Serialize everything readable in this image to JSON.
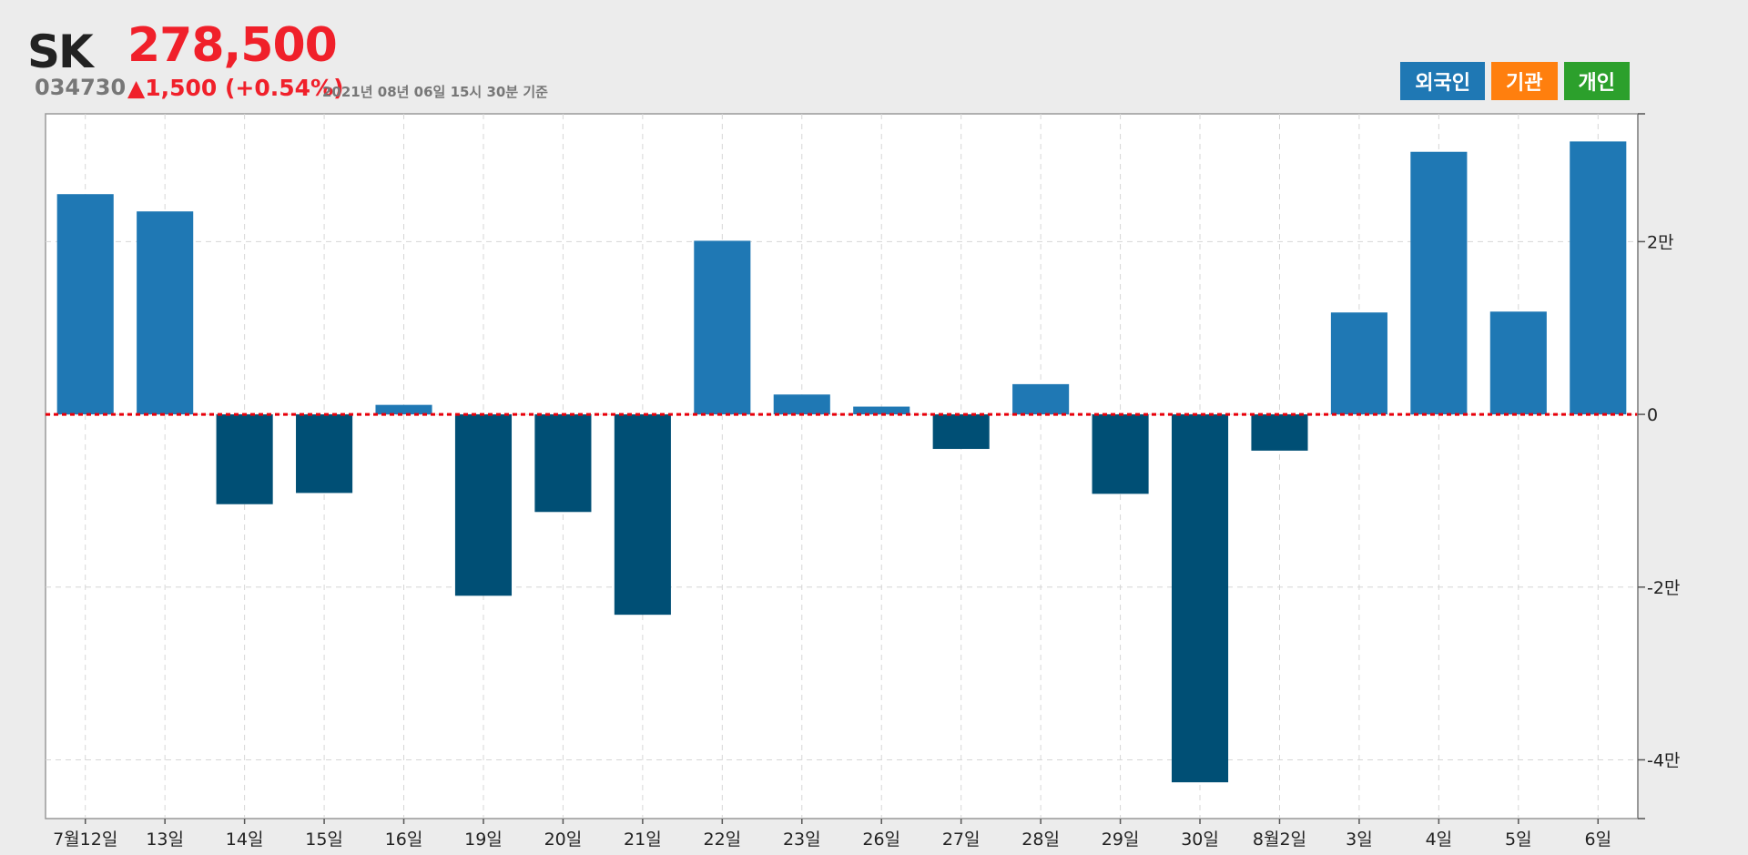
{
  "stock": {
    "name": "SK",
    "price": "278,500",
    "code": "034730",
    "change": "▲1,500 (+0.54%)",
    "asof": "2021년 08년 06일 15시 30분 기준",
    "up_color": "#f0202a"
  },
  "legend": [
    {
      "label": "외국인",
      "color": "#1f78b4"
    },
    {
      "label": "기관",
      "color": "#ff7f0e"
    },
    {
      "label": "개인",
      "color": "#2ca02c"
    }
  ],
  "chart_data": {
    "type": "bar",
    "series_name": "외국인",
    "categories": [
      "7월12일",
      "13일",
      "14일",
      "15일",
      "16일",
      "19일",
      "20일",
      "21일",
      "22일",
      "23일",
      "26일",
      "27일",
      "28일",
      "29일",
      "30일",
      "8월2일",
      "3일",
      "4일",
      "5일",
      "6일"
    ],
    "values": [
      25500,
      23500,
      -10400,
      -9100,
      1100,
      -21000,
      -11300,
      -23200,
      20100,
      2300,
      900,
      -4000,
      3500,
      -9200,
      -42600,
      -4200,
      11800,
      30400,
      11900,
      31600
    ],
    "ylim": [
      -46800,
      34800
    ],
    "yticks": [
      -40000,
      -20000,
      0,
      20000
    ],
    "ytick_labels": [
      "-4만",
      "-2만",
      "0",
      "2만"
    ],
    "positive_color": "#1f78b4",
    "negative_color": "#004f75",
    "zero_line_color": "#e8000b",
    "grid": true
  }
}
